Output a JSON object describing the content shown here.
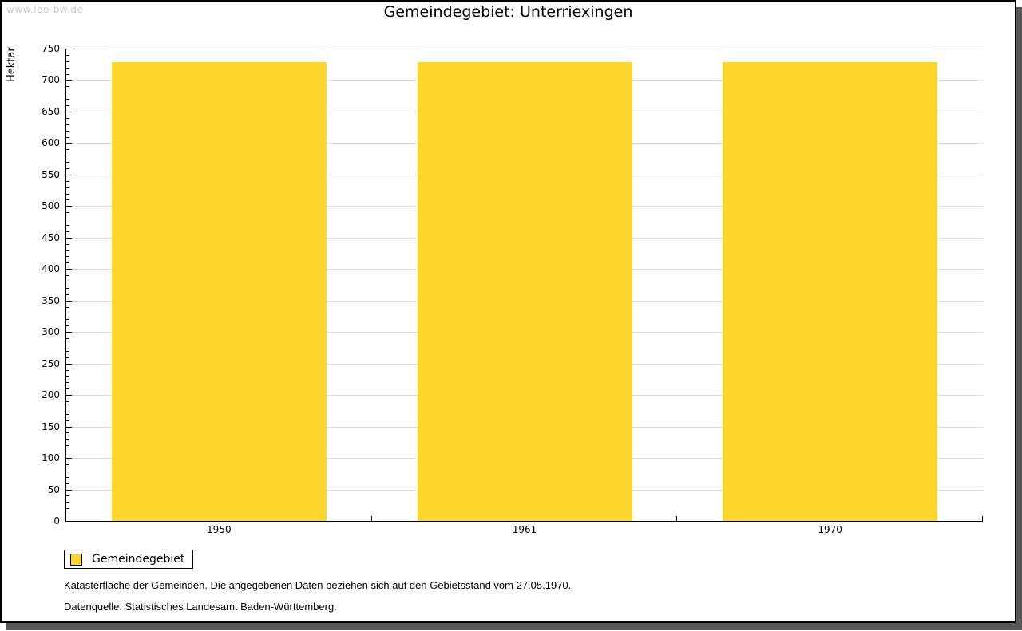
{
  "watermark": "www.leo-bw.de",
  "chart_data": {
    "type": "bar",
    "title": "Gemeindegebiet: Unterriexingen",
    "categories": [
      "1950",
      "1961",
      "1970"
    ],
    "series": [
      {
        "name": "Gemeindegebiet",
        "values": [
          729,
          729,
          729
        ]
      }
    ],
    "xlabel": "",
    "ylabel": "Hektar",
    "ylim": [
      0,
      750
    ],
    "ytick_major": 50,
    "ytick_minor": 10,
    "grid": true,
    "legend_position": "bottom-left",
    "bar_color": "#fdd62d"
  },
  "colors": {
    "bar": "#fdd62d",
    "gridline": "#dcdcdc",
    "axis": "#000000",
    "watermark": "#c9c9c9",
    "frame_shadow": "#58585a"
  },
  "legend": {
    "items": [
      {
        "label": "Gemeindegebiet",
        "color": "#fdd62d"
      }
    ]
  },
  "footnotes": [
    "Katasterfläche der Gemeinden. Die angegebenen Daten beziehen sich auf den Gebietsstand vom 27.05.1970.",
    "Datenquelle: Statistisches Landesamt Baden-Württemberg."
  ]
}
